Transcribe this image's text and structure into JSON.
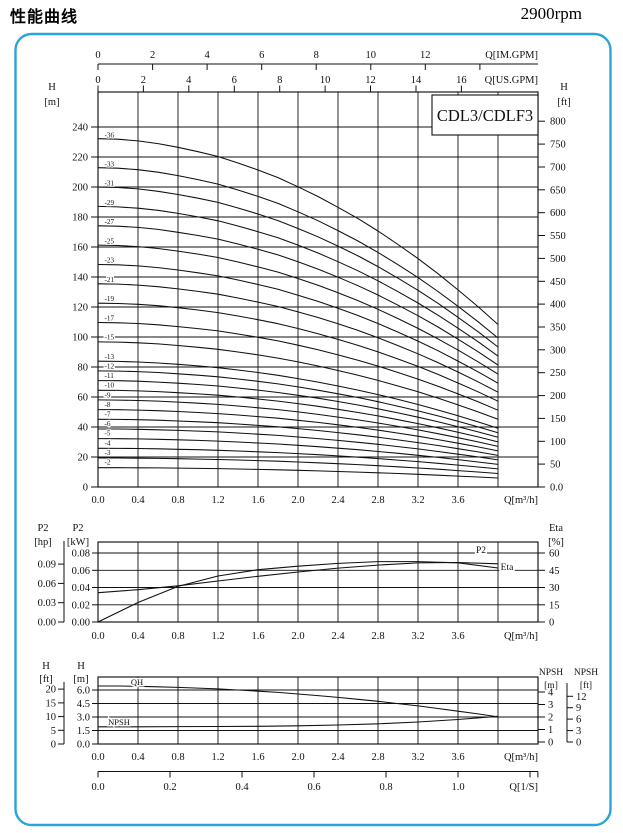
{
  "page": {
    "title": "性能曲线",
    "rpm": "2900rpm",
    "frame_color": "#2ba4da",
    "line_color": "#111111",
    "text_color": "#111111"
  },
  "chart_data": [
    {
      "id": "head_curves",
      "type": "line",
      "model_label": "CDL3/CDLF3",
      "x_axis": {
        "label": "Q[m³/h]",
        "labels": [
          "0.0",
          "0.4",
          "0.8",
          "1.2",
          "1.6",
          "2.0",
          "2.4",
          "2.8",
          "3.2",
          "3.6"
        ],
        "values": [
          0,
          0.4,
          0.8,
          1.2,
          1.6,
          2.0,
          2.4,
          2.8,
          3.2,
          3.6
        ],
        "max": 4.4,
        "grid_step": 0.4
      },
      "aux_top": [
        {
          "label": "Q[IM.GPM]",
          "labels": [
            "0",
            "2",
            "4",
            "6",
            "8",
            "10",
            "12"
          ],
          "values": [
            0,
            2,
            4,
            6,
            8,
            10,
            12
          ],
          "extra_ticks": [
            14
          ],
          "m3h_per_unit": 0.27276
        },
        {
          "label": "Q[US.GPM]",
          "labels": [
            "0",
            "2",
            "4",
            "6",
            "8",
            "10",
            "12",
            "14",
            "16"
          ],
          "values": [
            0,
            2,
            4,
            6,
            8,
            10,
            12,
            14,
            16
          ],
          "extra_ticks": [],
          "m3h_per_unit": 0.22712
        }
      ],
      "y_left": {
        "title": "H",
        "unit": "[m]",
        "labels": [
          "0",
          "20",
          "40",
          "60",
          "80",
          "100",
          "120",
          "140",
          "160",
          "180",
          "200",
          "220",
          "240"
        ],
        "values": [
          0,
          20,
          40,
          60,
          80,
          100,
          120,
          140,
          160,
          180,
          200,
          220,
          240
        ],
        "max": 263
      },
      "y_right": {
        "title": "H",
        "unit": "[ft]",
        "labels": [
          "0.0",
          "50",
          "100",
          "150",
          "200",
          "250",
          "300",
          "350",
          "400",
          "450",
          "500",
          "550",
          "600",
          "650",
          "700",
          "750",
          "800"
        ],
        "values": [
          0,
          50,
          100,
          150,
          200,
          250,
          300,
          350,
          400,
          450,
          500,
          550,
          600,
          650,
          700,
          750,
          800
        ]
      },
      "stages": [
        36,
        33,
        31,
        29,
        27,
        25,
        23,
        21,
        19,
        17,
        15,
        13,
        12,
        11,
        10,
        9,
        8,
        7,
        6,
        5,
        4,
        3,
        2
      ],
      "stage_label_prefix": "-",
      "base_curve": {
        "q": [
          0,
          0.2,
          0.4,
          0.6,
          0.8,
          1.0,
          1.2,
          1.4,
          1.6,
          1.8,
          2.0,
          2.2,
          2.4,
          2.6,
          2.8,
          3.0,
          3.2,
          3.4,
          3.6,
          3.8,
          4.0
        ],
        "h_per_stage": [
          6.45,
          6.44,
          6.41,
          6.36,
          6.29,
          6.21,
          6.12,
          6.0,
          5.87,
          5.73,
          5.56,
          5.38,
          5.18,
          4.97,
          4.74,
          4.49,
          4.23,
          3.95,
          3.65,
          3.34,
          3.01
        ]
      }
    },
    {
      "id": "power_efficiency",
      "type": "line",
      "x_axis": {
        "label": "Q[m³/h]",
        "labels": [
          "0.0",
          "0.4",
          "0.8",
          "1.2",
          "1.6",
          "2.0",
          "2.4",
          "2.8",
          "3.2",
          "3.6"
        ],
        "values": [
          0,
          0.4,
          0.8,
          1.2,
          1.6,
          2.0,
          2.4,
          2.8,
          3.2,
          3.6
        ],
        "max": 4.4,
        "grid_step": 0.4
      },
      "y_hp": {
        "title": "P2",
        "unit": "[hp]",
        "labels": [
          "0.00",
          "0.03",
          "0.06",
          "0.09"
        ],
        "values": [
          0,
          0.03,
          0.06,
          0.09
        ]
      },
      "y_kw": {
        "title": "P2",
        "unit": "[kW]",
        "labels": [
          "0.00",
          "0.02",
          "0.04",
          "0.06",
          "0.08"
        ],
        "values": [
          0,
          0.02,
          0.04,
          0.06,
          0.08
        ]
      },
      "y_eta": {
        "title": "Eta",
        "unit": "[%]",
        "labels": [
          "0",
          "15",
          "30",
          "45",
          "60"
        ],
        "values": [
          0,
          15,
          30,
          45,
          60
        ]
      },
      "series": [
        {
          "name": "P2",
          "axis": "kw",
          "q": [
            0,
            0.4,
            0.8,
            1.2,
            1.6,
            2.0,
            2.4,
            2.8,
            3.2,
            3.6,
            4.0
          ],
          "values": [
            0.034,
            0.0375,
            0.042,
            0.0475,
            0.053,
            0.058,
            0.0625,
            0.066,
            0.0685,
            0.069,
            0.0675
          ]
        },
        {
          "name": "Eta",
          "axis": "eta",
          "q": [
            0,
            0.4,
            0.8,
            1.2,
            1.6,
            2.0,
            2.4,
            2.8,
            3.2,
            3.6,
            4.0
          ],
          "values": [
            0,
            17,
            31,
            40,
            45.5,
            48.5,
            51,
            52.5,
            52.5,
            51.5,
            47
          ]
        }
      ]
    },
    {
      "id": "qh_npsh",
      "type": "line",
      "x_axis": {
        "label": "Q[m³/h]",
        "labels": [
          "0.0",
          "0.4",
          "0.8",
          "1.2",
          "1.6",
          "2.0",
          "2.4",
          "2.8",
          "3.2",
          "3.6"
        ],
        "values": [
          0,
          0.4,
          0.8,
          1.2,
          1.6,
          2.0,
          2.4,
          2.8,
          3.2,
          3.6
        ],
        "max": 4.4,
        "grid_step": 0.4
      },
      "y_left_ft": {
        "title": "H",
        "unit": "[ft]",
        "labels": [
          "0",
          "5",
          "10",
          "15",
          "20"
        ],
        "values": [
          0,
          5,
          10,
          15,
          20
        ]
      },
      "y_left_m": {
        "title": "H",
        "unit": "[m]",
        "labels": [
          "0.0",
          "1.5",
          "3.0",
          "4.5",
          "6.0"
        ],
        "values": [
          0,
          1.5,
          3,
          4.5,
          6
        ]
      },
      "y_right_npsh_m": {
        "title": "NPSH",
        "unit": "[m]",
        "labels": [
          "0",
          "1",
          "2",
          "3",
          "4"
        ],
        "values": [
          0,
          1,
          2,
          3,
          4
        ]
      },
      "y_right_npsh_ft": {
        "title": "NPSH",
        "unit": "[ft]",
        "labels": [
          "0",
          "3",
          "6",
          "9",
          "12"
        ],
        "values": [
          0,
          3,
          6,
          9,
          12
        ]
      },
      "aux_bottom": {
        "label": "Q[1/S]",
        "labels": [
          "0.0",
          "0.2",
          "0.4",
          "0.6",
          "0.8",
          "1.0"
        ],
        "values": [
          0,
          0.2,
          0.4,
          0.6,
          0.8,
          1.0
        ],
        "extra_ticks": [
          1.2,
          1.222
        ],
        "m3h_per_unit": 3.6
      },
      "series": [
        {
          "name": "QH",
          "axis": "m",
          "q": [
            0,
            0.2,
            0.4,
            0.6,
            0.8,
            1.0,
            1.2,
            1.4,
            1.6,
            1.8,
            2.0,
            2.2,
            2.4,
            2.6,
            2.8,
            3.0,
            3.2,
            3.4,
            3.6,
            3.8,
            4.0
          ],
          "values": [
            6.45,
            6.44,
            6.41,
            6.36,
            6.29,
            6.21,
            6.12,
            6.0,
            5.87,
            5.73,
            5.56,
            5.38,
            5.18,
            4.97,
            4.74,
            4.49,
            4.23,
            3.95,
            3.65,
            3.34,
            3.01
          ]
        },
        {
          "name": "NPSH",
          "axis": "npsh_m",
          "q": [
            0,
            0.4,
            0.8,
            1.2,
            1.6,
            2.0,
            2.4,
            2.8,
            3.2,
            3.6,
            4.0
          ],
          "values": [
            1.22,
            1.22,
            1.23,
            1.24,
            1.26,
            1.3,
            1.36,
            1.46,
            1.6,
            1.8,
            2.06
          ]
        }
      ]
    }
  ]
}
